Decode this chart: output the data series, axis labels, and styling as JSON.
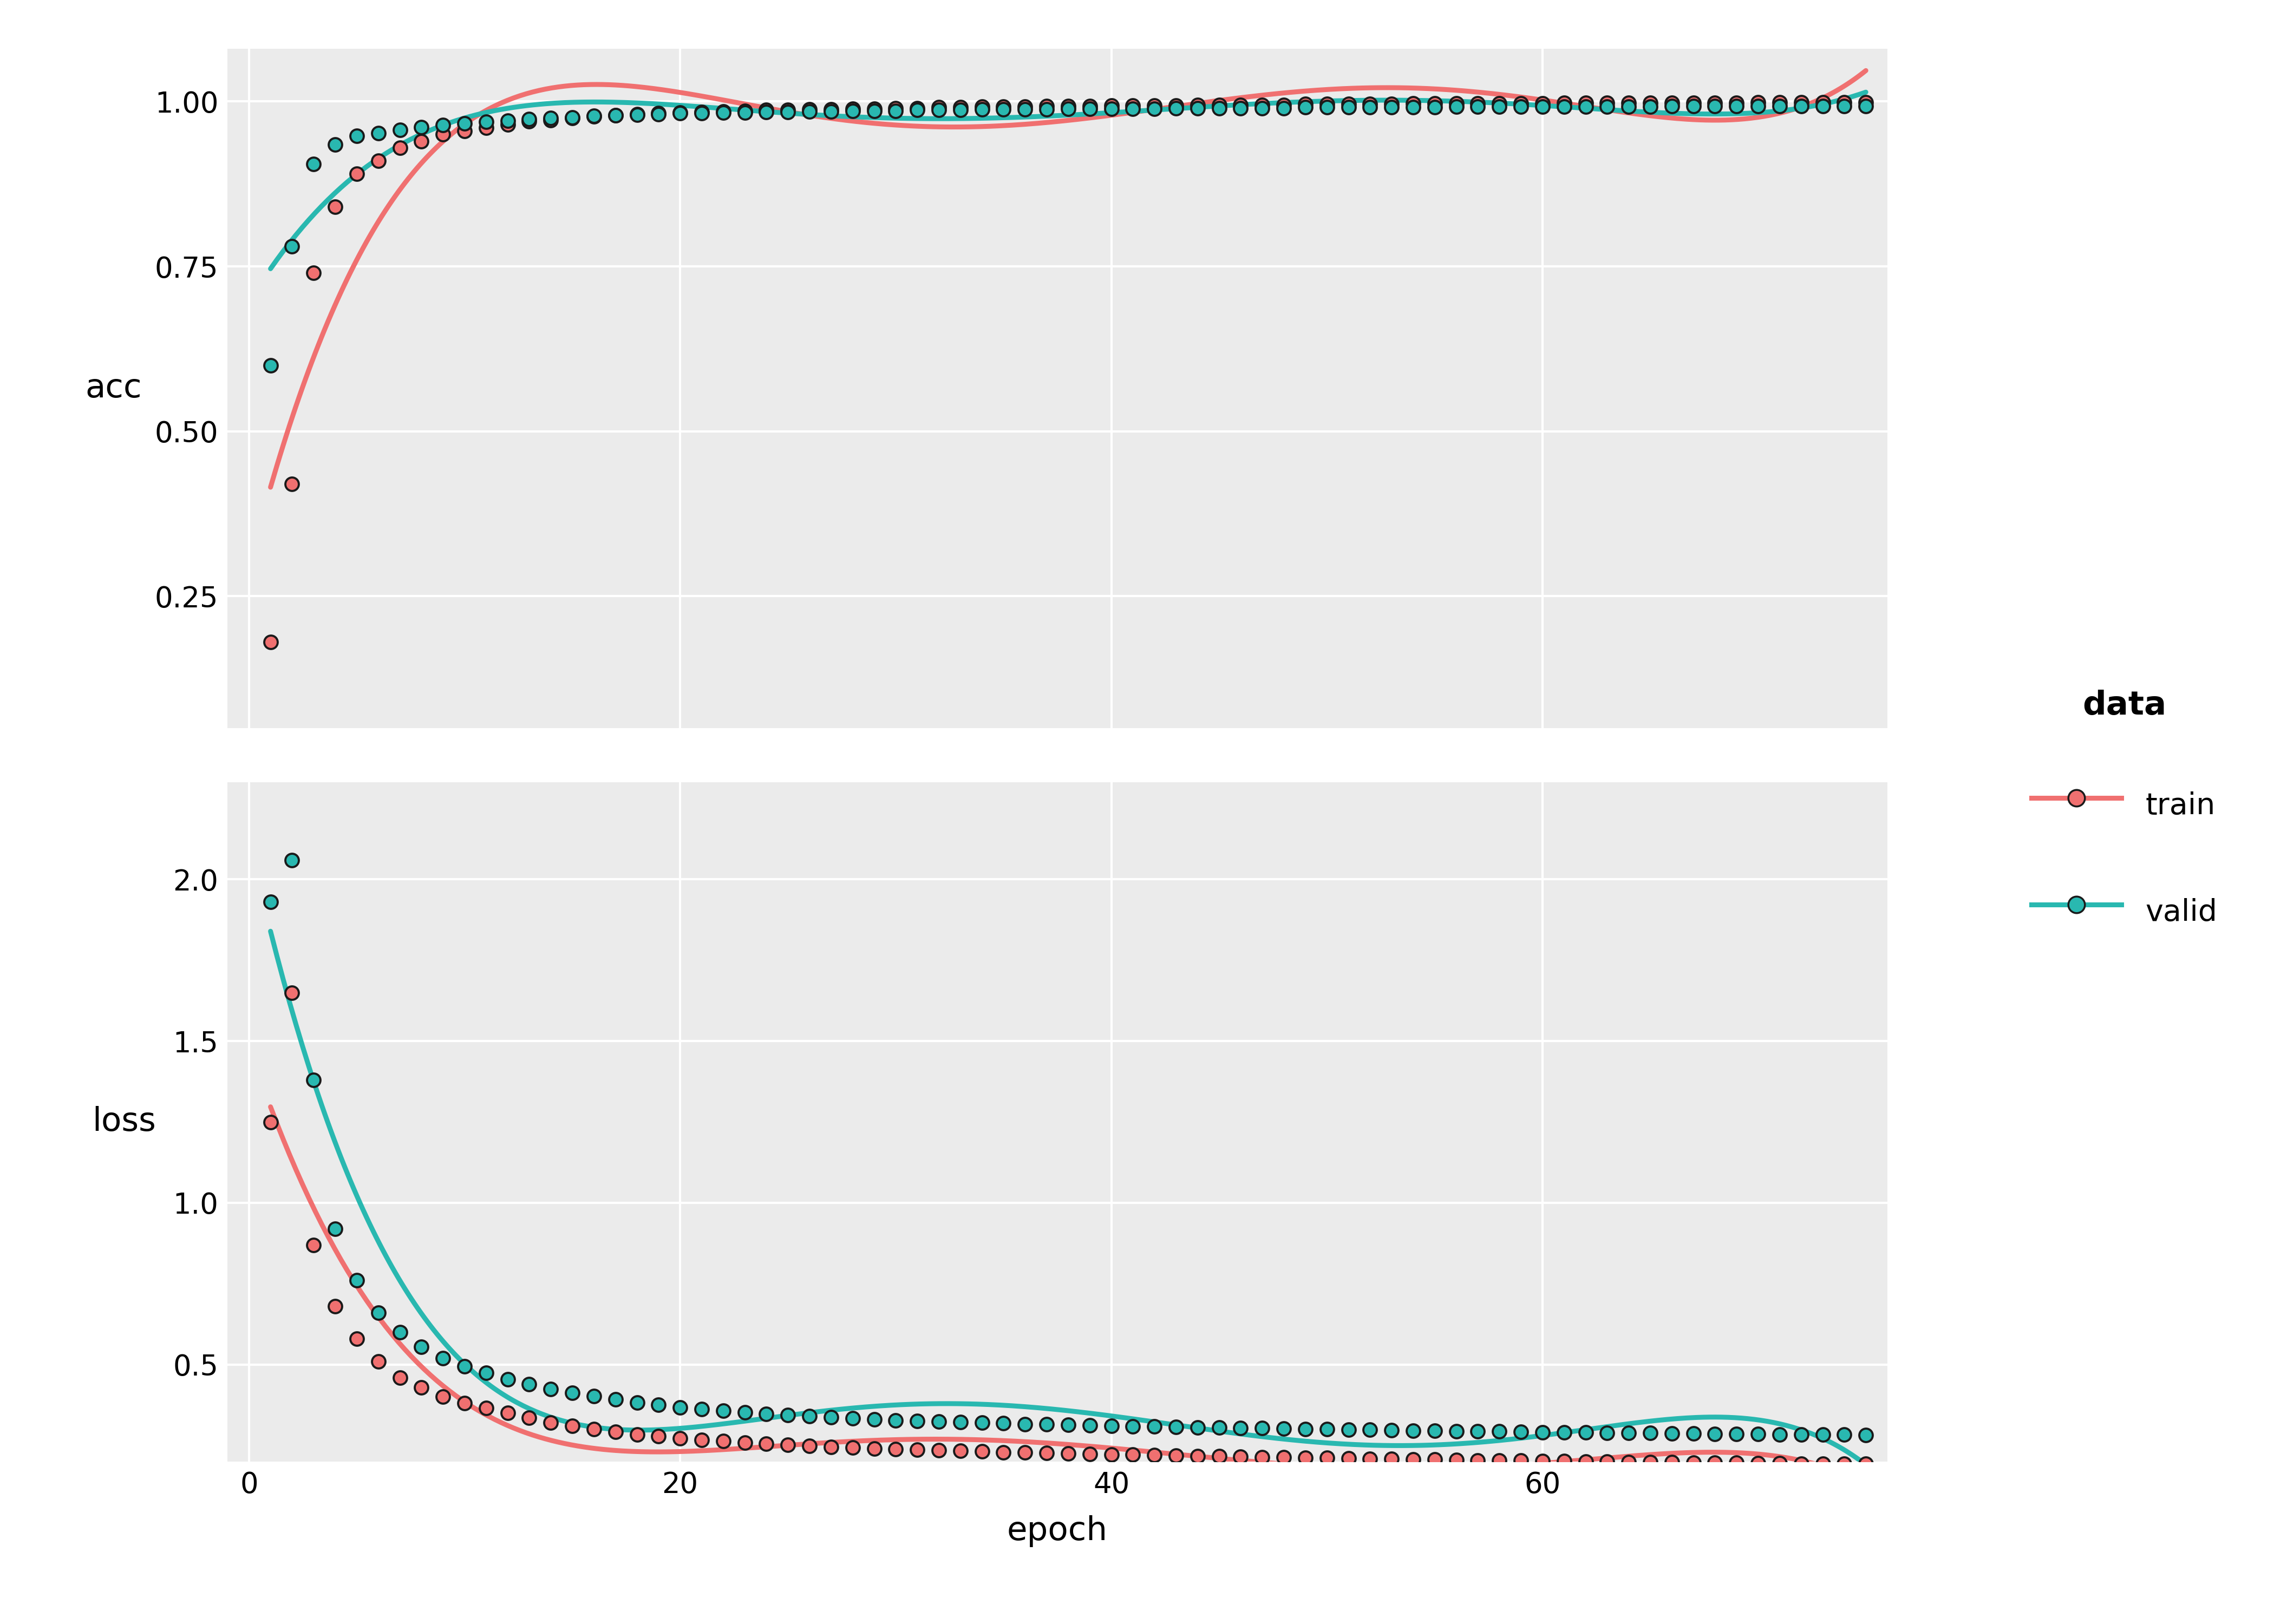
{
  "bg_color": "#EBEBEB",
  "grid_color": "#FFFFFF",
  "train_color": "#F07070",
  "valid_color": "#29B8B0",
  "point_edge_color": "#1a1a1a",
  "point_size": 320,
  "line_width": 6.5,
  "xlabel": "epoch",
  "ylabel_top": "acc",
  "ylabel_bottom": "loss",
  "legend_title": "data",
  "legend_labels": [
    "train",
    "valid"
  ],
  "xticks": [
    0,
    20,
    40,
    60
  ],
  "acc_yticks": [
    0.25,
    0.5,
    0.75,
    1.0
  ],
  "loss_yticks": [
    0.5,
    1.0,
    1.5,
    2.0
  ],
  "acc_ylim": [
    0.05,
    1.08
  ],
  "loss_ylim": [
    0.2,
    2.3
  ],
  "xlim": [
    -1,
    76
  ],
  "epochs": [
    1,
    2,
    3,
    4,
    5,
    6,
    7,
    8,
    9,
    10,
    11,
    12,
    13,
    14,
    15,
    16,
    17,
    18,
    19,
    20,
    21,
    22,
    23,
    24,
    25,
    26,
    27,
    28,
    29,
    30,
    31,
    32,
    33,
    34,
    35,
    36,
    37,
    38,
    39,
    40,
    41,
    42,
    43,
    44,
    45,
    46,
    47,
    48,
    49,
    50,
    51,
    52,
    53,
    54,
    55,
    56,
    57,
    58,
    59,
    60,
    61,
    62,
    63,
    64,
    65,
    66,
    67,
    68,
    69,
    70,
    71,
    72,
    73,
    74,
    75
  ],
  "train_acc": [
    0.18,
    0.42,
    0.74,
    0.84,
    0.89,
    0.91,
    0.93,
    0.94,
    0.95,
    0.955,
    0.96,
    0.965,
    0.97,
    0.972,
    0.975,
    0.977,
    0.979,
    0.981,
    0.982,
    0.983,
    0.984,
    0.985,
    0.986,
    0.987,
    0.987,
    0.988,
    0.988,
    0.989,
    0.989,
    0.99,
    0.99,
    0.991,
    0.991,
    0.992,
    0.992,
    0.992,
    0.993,
    0.993,
    0.993,
    0.994,
    0.994,
    0.994,
    0.994,
    0.995,
    0.995,
    0.995,
    0.995,
    0.995,
    0.996,
    0.996,
    0.996,
    0.996,
    0.996,
    0.997,
    0.997,
    0.997,
    0.997,
    0.997,
    0.997,
    0.997,
    0.998,
    0.998,
    0.998,
    0.998,
    0.998,
    0.998,
    0.998,
    0.998,
    0.998,
    0.999,
    0.999,
    0.999,
    0.999,
    0.999,
    0.999
  ],
  "valid_acc": [
    0.6,
    0.78,
    0.905,
    0.935,
    0.948,
    0.952,
    0.957,
    0.961,
    0.964,
    0.967,
    0.969,
    0.971,
    0.973,
    0.975,
    0.976,
    0.978,
    0.979,
    0.98,
    0.981,
    0.982,
    0.982,
    0.983,
    0.983,
    0.984,
    0.984,
    0.985,
    0.985,
    0.986,
    0.986,
    0.986,
    0.987,
    0.987,
    0.987,
    0.988,
    0.988,
    0.988,
    0.988,
    0.989,
    0.989,
    0.989,
    0.989,
    0.989,
    0.99,
    0.99,
    0.99,
    0.99,
    0.99,
    0.99,
    0.991,
    0.991,
    0.991,
    0.991,
    0.991,
    0.991,
    0.991,
    0.992,
    0.992,
    0.992,
    0.992,
    0.992,
    0.992,
    0.992,
    0.992,
    0.992,
    0.992,
    0.993,
    0.993,
    0.993,
    0.993,
    0.993,
    0.993,
    0.993,
    0.993,
    0.993,
    0.993
  ],
  "train_loss": [
    1.25,
    1.65,
    0.87,
    0.68,
    0.58,
    0.51,
    0.46,
    0.43,
    0.4,
    0.38,
    0.365,
    0.35,
    0.335,
    0.32,
    0.31,
    0.3,
    0.292,
    0.284,
    0.278,
    0.272,
    0.267,
    0.263,
    0.259,
    0.255,
    0.252,
    0.249,
    0.246,
    0.243,
    0.241,
    0.239,
    0.237,
    0.235,
    0.233,
    0.231,
    0.229,
    0.228,
    0.226,
    0.225,
    0.223,
    0.222,
    0.221,
    0.22,
    0.218,
    0.217,
    0.216,
    0.215,
    0.214,
    0.213,
    0.212,
    0.211,
    0.21,
    0.209,
    0.208,
    0.207,
    0.206,
    0.205,
    0.204,
    0.203,
    0.203,
    0.202,
    0.201,
    0.2,
    0.2,
    0.199,
    0.198,
    0.198,
    0.197,
    0.196,
    0.196,
    0.195,
    0.195,
    0.194,
    0.194,
    0.193,
    0.193
  ],
  "valid_loss": [
    1.93,
    2.06,
    1.38,
    0.92,
    0.76,
    0.66,
    0.6,
    0.555,
    0.52,
    0.495,
    0.475,
    0.455,
    0.44,
    0.425,
    0.413,
    0.402,
    0.392,
    0.383,
    0.375,
    0.368,
    0.362,
    0.357,
    0.352,
    0.348,
    0.344,
    0.34,
    0.337,
    0.334,
    0.331,
    0.328,
    0.326,
    0.324,
    0.322,
    0.32,
    0.318,
    0.316,
    0.315,
    0.313,
    0.312,
    0.31,
    0.309,
    0.308,
    0.307,
    0.306,
    0.305,
    0.304,
    0.303,
    0.302,
    0.301,
    0.3,
    0.299,
    0.298,
    0.297,
    0.296,
    0.295,
    0.294,
    0.294,
    0.293,
    0.292,
    0.291,
    0.291,
    0.29,
    0.289,
    0.289,
    0.288,
    0.287,
    0.287,
    0.286,
    0.286,
    0.285,
    0.284,
    0.284,
    0.283,
    0.283,
    0.282
  ]
}
